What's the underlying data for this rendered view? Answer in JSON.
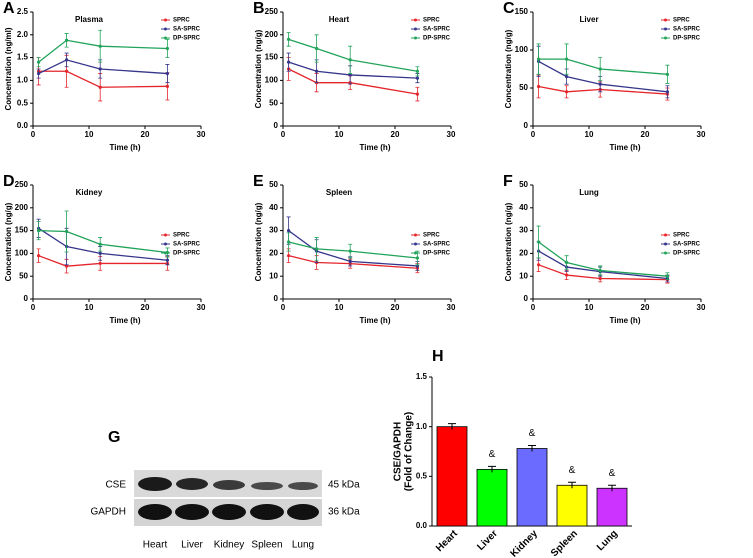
{
  "chart_data": [
    {
      "type": "line",
      "panel": "A",
      "title": "Plasma",
      "xlabel": "Time (h)",
      "ylabel": "Concentration (ng/ml)",
      "x": [
        1,
        6,
        12,
        24
      ],
      "xlim": [
        0,
        30
      ],
      "xticks": [
        0,
        10,
        20,
        30
      ],
      "ylim": [
        0,
        2.5
      ],
      "yticks": [
        {
          "value": 0,
          "label": "0.0"
        },
        0.5,
        {
          "value": 1,
          "label": "1.0"
        },
        1.5,
        {
          "value": 2,
          "label": "2.0"
        },
        2.5
      ],
      "legend": "upper right",
      "series": [
        {
          "name": "SPRC",
          "color": "#e4252b",
          "values": [
            1.2,
            1.2,
            0.85,
            0.87
          ],
          "errors": [
            0.3,
            0.35,
            0.3,
            0.3
          ]
        },
        {
          "name": "SA-SPRC",
          "color": "#35358c",
          "values": [
            1.15,
            1.45,
            1.25,
            1.15
          ],
          "errors": [
            0.1,
            0.15,
            0.2,
            0.2
          ]
        },
        {
          "name": "DP-SPRC",
          "color": "#21a35a",
          "values": [
            1.4,
            1.88,
            1.75,
            1.7
          ],
          "errors": [
            0.1,
            0.15,
            0.35,
            0.2
          ]
        }
      ]
    },
    {
      "type": "line",
      "panel": "B",
      "title": "Heart",
      "xlabel": "Time (h)",
      "ylabel": "Concentration (ng/g)",
      "x": [
        1,
        6,
        12,
        24
      ],
      "xlim": [
        0,
        30
      ],
      "xticks": [
        0,
        10,
        20,
        30
      ],
      "ylim": [
        0,
        250
      ],
      "yticks": [
        0,
        50,
        100,
        150,
        200,
        250
      ],
      "legend": "upper right",
      "series": [
        {
          "name": "SPRC",
          "color": "#e4252b",
          "values": [
            125,
            95,
            95,
            70
          ],
          "errors": [
            25,
            20,
            15,
            15
          ]
        },
        {
          "name": "SA-SPRC",
          "color": "#35358c",
          "values": [
            140,
            120,
            112,
            105
          ],
          "errors": [
            20,
            25,
            20,
            10
          ]
        },
        {
          "name": "DP-SPRC",
          "color": "#21a35a",
          "values": [
            190,
            170,
            145,
            120
          ],
          "errors": [
            15,
            30,
            30,
            10
          ]
        }
      ]
    },
    {
      "type": "line",
      "panel": "C",
      "title": "Liver",
      "xlabel": "Time (h)",
      "ylabel": "Concentration (ng/g)",
      "x": [
        1,
        6,
        12,
        24
      ],
      "xlim": [
        0,
        30
      ],
      "xticks": [
        0,
        10,
        20,
        30
      ],
      "ylim": [
        0,
        150
      ],
      "yticks": [
        0,
        50,
        100,
        150
      ],
      "legend": "upper right",
      "series": [
        {
          "name": "SPRC",
          "color": "#e4252b",
          "values": [
            52,
            45,
            48,
            42
          ],
          "errors": [
            15,
            8,
            10,
            8
          ]
        },
        {
          "name": "SA-SPRC",
          "color": "#35358c",
          "values": [
            85,
            65,
            55,
            45
          ],
          "errors": [
            20,
            10,
            10,
            8
          ]
        },
        {
          "name": "DP-SPRC",
          "color": "#21a35a",
          "values": [
            88,
            88,
            75,
            68
          ],
          "errors": [
            20,
            20,
            15,
            12
          ]
        }
      ]
    },
    {
      "type": "line",
      "panel": "D",
      "title": "Kidney",
      "xlabel": "Time (h)",
      "ylabel": "Concentration (ng/g)",
      "x": [
        1,
        6,
        12,
        24
      ],
      "xlim": [
        0,
        30
      ],
      "xticks": [
        0,
        10,
        20,
        30
      ],
      "ylim": [
        0,
        250
      ],
      "yticks": [
        0,
        50,
        100,
        150,
        200,
        250
      ],
      "legend": "center right",
      "series": [
        {
          "name": "SPRC",
          "color": "#e4252b",
          "values": [
            95,
            72,
            78,
            78
          ],
          "errors": [
            15,
            15,
            15,
            15
          ]
        },
        {
          "name": "SA-SPRC",
          "color": "#35358c",
          "values": [
            155,
            115,
            100,
            85
          ],
          "errors": [
            20,
            40,
            15,
            10
          ]
        },
        {
          "name": "DP-SPRC",
          "color": "#21a35a",
          "values": [
            150,
            148,
            120,
            102
          ],
          "errors": [
            20,
            45,
            15,
            10
          ]
        }
      ]
    },
    {
      "type": "line",
      "panel": "E",
      "title": "Spleen",
      "xlabel": "Time (h)",
      "ylabel": "Concentration (ng/g)",
      "x": [
        1,
        6,
        12,
        24
      ],
      "xlim": [
        0,
        30
      ],
      "xticks": [
        0,
        10,
        20,
        30
      ],
      "ylim": [
        0,
        50
      ],
      "yticks": [
        0,
        10,
        20,
        30,
        40,
        50
      ],
      "legend": "center right",
      "series": [
        {
          "name": "SPRC",
          "color": "#e4252b",
          "values": [
            19,
            16,
            15.5,
            13.5
          ],
          "errors": [
            3,
            3,
            2,
            2
          ]
        },
        {
          "name": "SA-SPRC",
          "color": "#35358c",
          "values": [
            30,
            21,
            16.5,
            14.5
          ],
          "errors": [
            6,
            5,
            2,
            2
          ]
        },
        {
          "name": "DP-SPRC",
          "color": "#21a35a",
          "values": [
            25,
            22,
            21,
            18
          ],
          "errors": [
            4,
            5,
            3,
            3
          ]
        }
      ]
    },
    {
      "type": "line",
      "panel": "F",
      "title": "Lung",
      "xlabel": "Time (h)",
      "ylabel": "Concentration (ng/g)",
      "x": [
        1,
        6,
        12,
        24
      ],
      "xlim": [
        0,
        30
      ],
      "xticks": [
        0,
        10,
        20,
        30
      ],
      "ylim": [
        0,
        50
      ],
      "yticks": [
        0,
        10,
        20,
        30,
        40,
        50
      ],
      "legend": "center right",
      "series": [
        {
          "name": "SPRC",
          "color": "#e4252b",
          "values": [
            15,
            10.5,
            9,
            8.5
          ],
          "errors": [
            3,
            2,
            1.5,
            1.5
          ]
        },
        {
          "name": "SA-SPRC",
          "color": "#35358c",
          "values": [
            21,
            14,
            12,
            9
          ],
          "errors": [
            4,
            2,
            2,
            1.5
          ]
        },
        {
          "name": "DP-SPRC",
          "color": "#21a35a",
          "values": [
            25,
            16,
            12.5,
            10
          ],
          "errors": [
            7,
            3,
            2,
            1.5
          ]
        }
      ]
    },
    {
      "type": "bar",
      "panel": "H",
      "ylabel": [
        "CSE/GAPDH",
        "(Fold of Change)"
      ],
      "categories": [
        "Heart",
        "Liver",
        "Kidney",
        "Spleen",
        "Lung"
      ],
      "values": [
        1.0,
        0.57,
        0.78,
        0.41,
        0.38
      ],
      "errors": [
        0.03,
        0.03,
        0.03,
        0.03,
        0.03
      ],
      "colors": [
        "#ff0000",
        "#00ff00",
        "#6b6bff",
        "#ffff00",
        "#cc33ff"
      ],
      "annotations": [
        null,
        "&",
        "&",
        "&",
        "&"
      ],
      "ylim": [
        0,
        1.5
      ],
      "yticks": [
        {
          "value": 0,
          "label": "0.0"
        },
        0.5,
        {
          "value": 1,
          "label": "1.0"
        },
        1.5
      ]
    }
  ],
  "blot": {
    "panel": "G",
    "rows": [
      "CSE",
      "GAPDH"
    ],
    "sizes": [
      "45 kDa",
      "36 kDa"
    ],
    "lanes": [
      "Heart",
      "Liver",
      "Kidney",
      "Spleen",
      "Lung"
    ]
  }
}
